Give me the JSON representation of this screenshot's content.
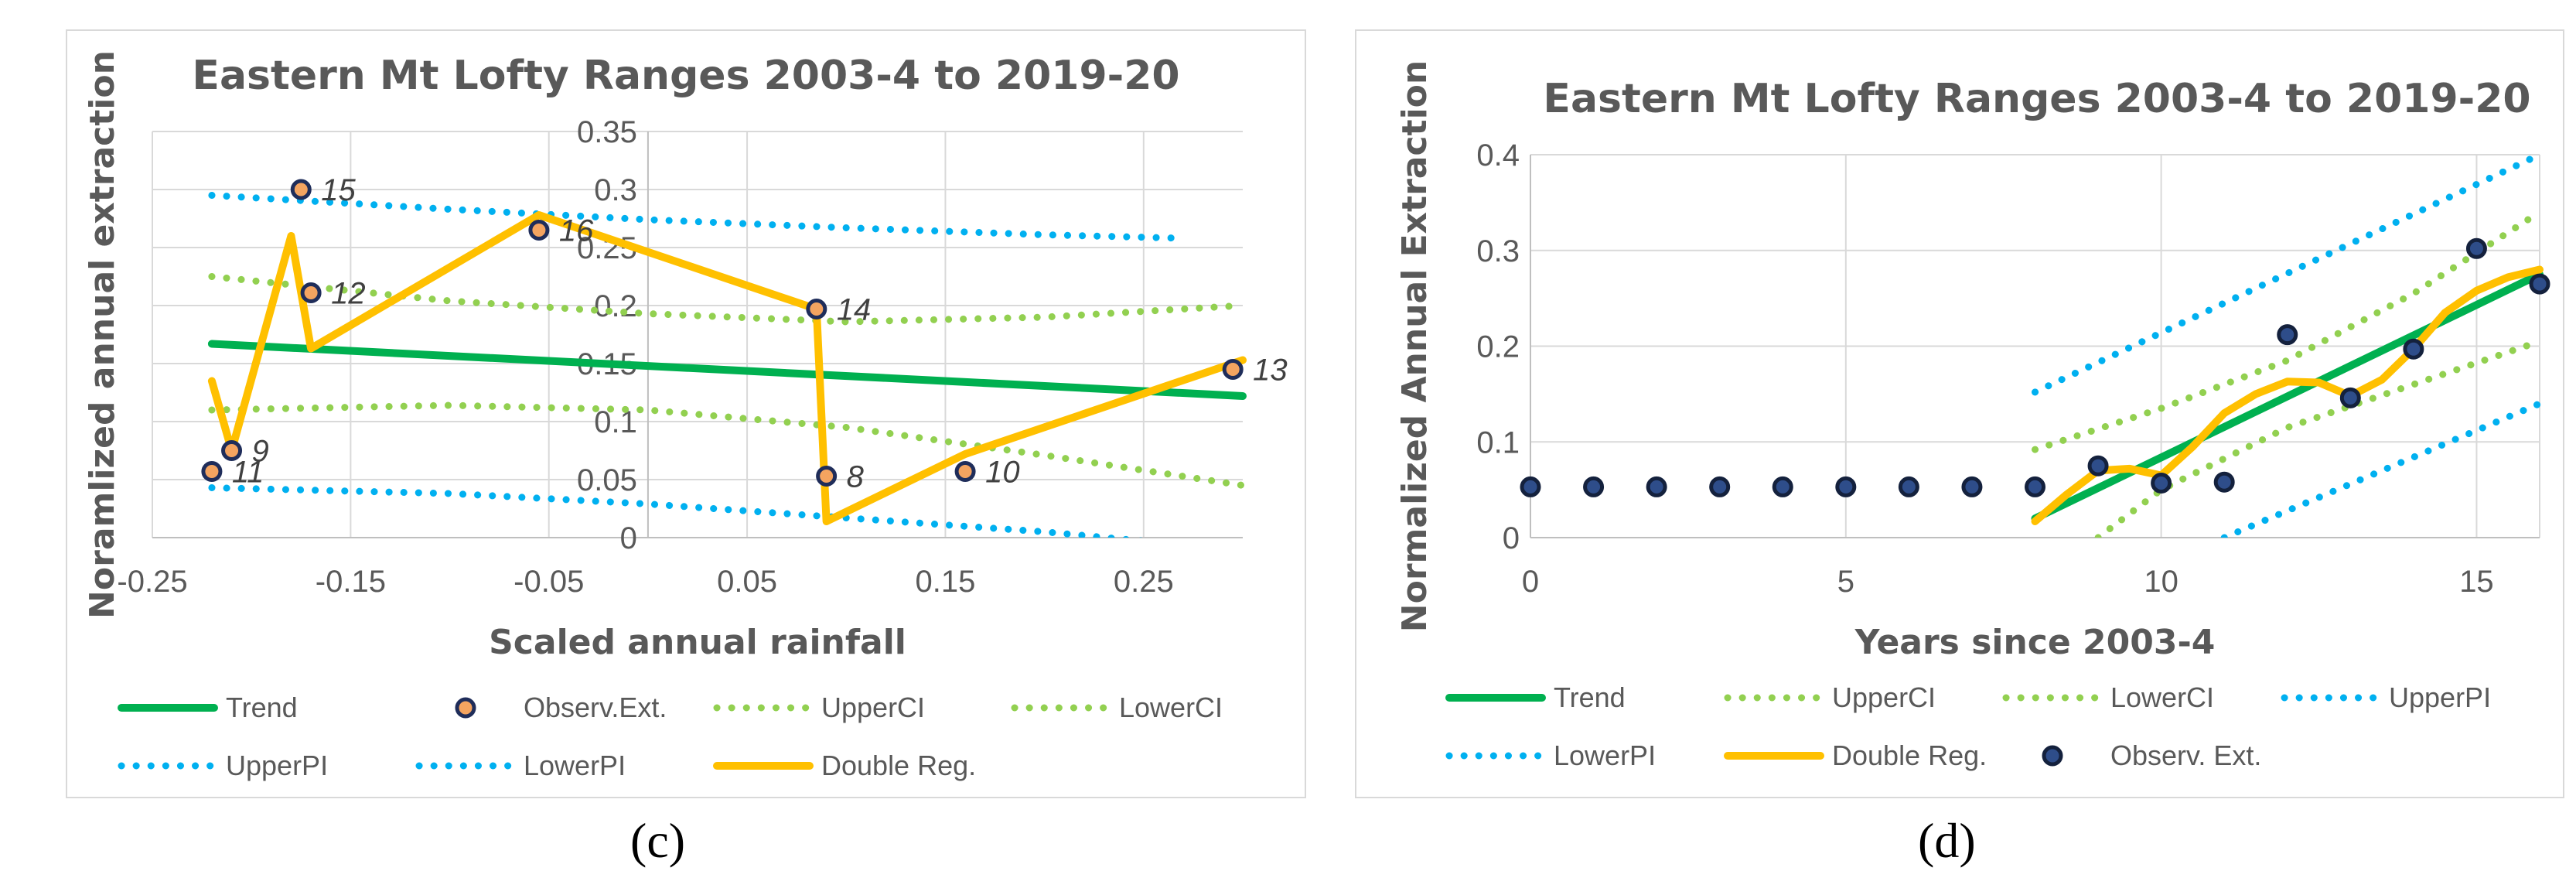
{
  "chart_data": [
    {
      "panel_label": "(c)",
      "panel_letter": "c",
      "type": "scatter",
      "title": "Eastern Mt Lofty Ranges 2003-4 to 2019-20",
      "xlabel": "Scaled annual rainfall",
      "ylabel": "Noramlized annual extraction",
      "xlim": [
        -0.25,
        0.3
      ],
      "ylim": [
        0,
        0.35
      ],
      "x_ticks": [
        -0.25,
        -0.15,
        -0.05,
        0.05,
        0.15,
        0.25
      ],
      "x_tick_labels": [
        "-0.25",
        "-0.15",
        "-0.05",
        "0.05",
        "0.15",
        "0.25"
      ],
      "y_ticks": [
        0,
        0.05,
        0.1,
        0.15,
        0.2,
        0.25,
        0.3,
        0.35
      ],
      "y_tick_labels": [
        "0",
        "0.05",
        "0.1",
        "0.15",
        "0.2",
        "0.25",
        "0.3",
        "0.35"
      ],
      "y_axis_at_x": 0,
      "grid": true,
      "legend_position": "bottom",
      "colors": {
        "trend": "#00b050",
        "ci": "#92d050",
        "pi": "#00b0f0",
        "double_reg": "#ffc000",
        "obs_fill": "#f4a460",
        "obs_edge": "#1f2d5a"
      },
      "series": [
        {
          "name": "Trend",
          "style": "line",
          "x": [
            -0.22,
            0.3
          ],
          "y": [
            0.167,
            0.122
          ]
        },
        {
          "name": "Observ.Ext.",
          "style": "markers",
          "points": [
            {
              "x": -0.22,
              "y": 0.057,
              "label": "11"
            },
            {
              "x": -0.21,
              "y": 0.075,
              "label": "9"
            },
            {
              "x": -0.175,
              "y": 0.3,
              "label": "15"
            },
            {
              "x": -0.17,
              "y": 0.211,
              "label": "12"
            },
            {
              "x": -0.055,
              "y": 0.265,
              "label": "16"
            },
            {
              "x": 0.085,
              "y": 0.197,
              "label": "14"
            },
            {
              "x": 0.09,
              "y": 0.053,
              "label": "8"
            },
            {
              "x": 0.16,
              "y": 0.057,
              "label": "10"
            },
            {
              "x": 0.295,
              "y": 0.145,
              "label": "13"
            }
          ]
        },
        {
          "name": "UpperCI",
          "style": "dotted",
          "x": [
            -0.22,
            -0.1,
            0.0,
            0.1,
            0.2,
            0.3
          ],
          "y": [
            0.225,
            0.204,
            0.193,
            0.186,
            0.19,
            0.2
          ]
        },
        {
          "name": "LowerCI",
          "style": "dotted",
          "x": [
            -0.22,
            -0.1,
            0.0,
            0.1,
            0.2,
            0.3
          ],
          "y": [
            0.11,
            0.114,
            0.11,
            0.095,
            0.071,
            0.045
          ]
        },
        {
          "name": "UpperPI",
          "style": "dotted",
          "x": [
            -0.22,
            -0.1,
            0.0,
            0.1,
            0.2,
            0.27
          ],
          "y": [
            0.295,
            0.283,
            0.274,
            0.267,
            0.261,
            0.258
          ]
        },
        {
          "name": "LowerPI",
          "style": "dotted",
          "x": [
            -0.22,
            -0.1,
            0.0,
            0.1,
            0.2,
            0.25
          ],
          "y": [
            0.043,
            0.038,
            0.029,
            0.017,
            0.005,
            -0.003
          ]
        },
        {
          "name": "Double Reg.",
          "style": "line",
          "x": [
            -0.22,
            -0.21,
            -0.18,
            -0.17,
            -0.055,
            0.085,
            0.09,
            0.16,
            0.3
          ],
          "y": [
            0.135,
            0.075,
            0.26,
            0.163,
            0.278,
            0.197,
            0.014,
            0.072,
            0.153
          ]
        }
      ]
    },
    {
      "panel_label": "(d)",
      "panel_letter": "d",
      "type": "scatter",
      "title": "Eastern Mt Lofty Ranges 2003-4 to 2019-20",
      "xlabel": "Years since 2003-4",
      "ylabel": "Normalized Annual Extraction",
      "xlim": [
        0,
        16
      ],
      "ylim": [
        0,
        0.4
      ],
      "x_ticks": [
        0,
        5,
        10,
        15
      ],
      "x_tick_labels": [
        "0",
        "5",
        "10",
        "15"
      ],
      "y_ticks": [
        0,
        0.1,
        0.2,
        0.3,
        0.4
      ],
      "y_tick_labels": [
        "0",
        "0.1",
        "0.2",
        "0.3",
        "0.4"
      ],
      "grid": true,
      "legend_position": "bottom",
      "colors": {
        "trend": "#00b050",
        "ci": "#92d050",
        "pi": "#00b0f0",
        "double_reg": "#ffc000",
        "obs_fill": "#2e4d8a",
        "obs_edge": "#14213d"
      },
      "series": [
        {
          "name": "Trend",
          "style": "line",
          "x": [
            8,
            16
          ],
          "y": [
            0.02,
            0.275
          ]
        },
        {
          "name": "UpperCI",
          "style": "dotted",
          "x": [
            8,
            10,
            12,
            14,
            16
          ],
          "y": [
            0.092,
            0.135,
            0.185,
            0.255,
            0.34
          ]
        },
        {
          "name": "LowerCI",
          "style": "dotted",
          "x": [
            9,
            10,
            12,
            14,
            16
          ],
          "y": [
            0.0,
            0.05,
            0.115,
            0.16,
            0.205
          ]
        },
        {
          "name": "UpperPI",
          "style": "dotted",
          "x": [
            8,
            16
          ],
          "y": [
            0.152,
            0.4
          ]
        },
        {
          "name": "LowerPI",
          "style": "dotted",
          "x": [
            11,
            16
          ],
          "y": [
            0.0,
            0.14
          ]
        },
        {
          "name": "Double Reg.",
          "style": "line",
          "x": [
            8,
            8.5,
            9,
            9.5,
            10,
            10.5,
            11,
            11.5,
            12,
            12.5,
            13,
            13.5,
            14,
            14.5,
            15,
            15.5,
            16
          ],
          "y": [
            0.017,
            0.045,
            0.07,
            0.072,
            0.065,
            0.095,
            0.13,
            0.15,
            0.163,
            0.162,
            0.148,
            0.165,
            0.197,
            0.235,
            0.258,
            0.272,
            0.28
          ]
        },
        {
          "name": "Observ. Ext.",
          "style": "markers",
          "points": [
            {
              "x": 0,
              "y": 0.053
            },
            {
              "x": 1,
              "y": 0.053
            },
            {
              "x": 2,
              "y": 0.053
            },
            {
              "x": 3,
              "y": 0.053
            },
            {
              "x": 4,
              "y": 0.053
            },
            {
              "x": 5,
              "y": 0.053
            },
            {
              "x": 6,
              "y": 0.053
            },
            {
              "x": 7,
              "y": 0.053
            },
            {
              "x": 8,
              "y": 0.053
            },
            {
              "x": 9,
              "y": 0.075
            },
            {
              "x": 10,
              "y": 0.057
            },
            {
              "x": 11,
              "y": 0.058
            },
            {
              "x": 12,
              "y": 0.212
            },
            {
              "x": 13,
              "y": 0.146
            },
            {
              "x": 14,
              "y": 0.197
            },
            {
              "x": 15,
              "y": 0.302
            },
            {
              "x": 16,
              "y": 0.265
            }
          ]
        }
      ]
    }
  ]
}
